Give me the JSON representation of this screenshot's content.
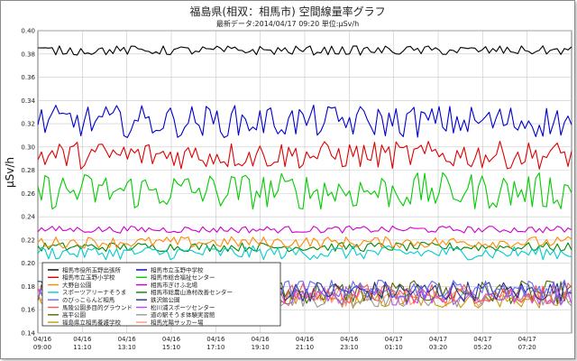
{
  "chart_data": {
    "type": "line",
    "title": "福島県(相双：相馬市) 空間線量率グラフ",
    "subtitle": "最新データ:2014/04/17 09:20  単位:μSv/h",
    "ylabel": "μSv/h",
    "xlabel": "",
    "ylim": [
      0.14,
      0.4
    ],
    "yticks": [
      "0.40",
      "0.38",
      "0.36",
      "0.34",
      "0.32",
      "0.30",
      "0.28",
      "0.26",
      "0.24",
      "0.22",
      "0.20",
      "0.18",
      "0.16",
      "0.14"
    ],
    "x_ticks": [
      {
        "date": "04/16",
        "time": "09:00"
      },
      {
        "date": "04/16",
        "time": "11:10"
      },
      {
        "date": "04/16",
        "time": "13:10"
      },
      {
        "date": "04/16",
        "time": "15:10"
      },
      {
        "date": "04/16",
        "time": "17:10"
      },
      {
        "date": "04/16",
        "time": "19:10"
      },
      {
        "date": "04/16",
        "time": "21:10"
      },
      {
        "date": "04/16",
        "time": "23:10"
      },
      {
        "date": "04/17",
        "time": "01:10"
      },
      {
        "date": "04/17",
        "time": "03:20"
      },
      {
        "date": "04/17",
        "time": "05:20"
      },
      {
        "date": "04/17",
        "time": "07:20"
      }
    ],
    "grid": true,
    "legend_position": "bottom-left",
    "series": [
      {
        "name": "相馬市役所玉野出張所",
        "color": "#000000",
        "base": 0.383,
        "noise": 0.004
      },
      {
        "name": "相馬市立玉野中学校",
        "color": "#0000cc",
        "base": 0.322,
        "noise": 0.014
      },
      {
        "name": "相馬市立玉野小学校",
        "color": "#dd0000",
        "base": 0.293,
        "noise": 0.012
      },
      {
        "name": "相馬市総合福祉センター",
        "color": "#00cc00",
        "base": 0.262,
        "noise": 0.016
      },
      {
        "name": "大野台公園",
        "color": "#ff8800",
        "base": 0.218,
        "noise": 0.005
      },
      {
        "name": "相馬市ぎけふ北場",
        "color": "#cc00cc",
        "base": 0.229,
        "noise": 0.003
      },
      {
        "name": "スポーツアリーナそうま",
        "color": "#00cccc",
        "base": 0.209,
        "noise": 0.006
      },
      {
        "name": "相馬市総農山漁村改善センター",
        "color": "#008800",
        "base": 0.214,
        "noise": 0.004
      },
      {
        "name": "のびっこらんど相馬",
        "color": "#6666ff",
        "base": 0.178,
        "noise": 0.008
      },
      {
        "name": "鉄沢館公園",
        "color": "#223388",
        "base": 0.176,
        "noise": 0.009
      },
      {
        "name": "馬陵公園多目的グラウンド",
        "color": "#ff5555",
        "base": 0.174,
        "noise": 0.009
      },
      {
        "name": "松川浦スポーツセンター",
        "color": "#bb44ff",
        "base": 0.172,
        "noise": 0.008
      },
      {
        "name": "高平公園",
        "color": "#556600",
        "base": 0.175,
        "noise": 0.01
      },
      {
        "name": "道の駅そうま体験実習館",
        "color": "#999999",
        "base": 0.17,
        "noise": 0.008
      },
      {
        "name": "福島県立相馬養護学校",
        "color": "#cc9900",
        "base": 0.168,
        "noise": 0.007
      },
      {
        "name": "相馬光陽サッカー場",
        "color": "#ff9977",
        "base": 0.171,
        "noise": 0.008
      }
    ]
  }
}
